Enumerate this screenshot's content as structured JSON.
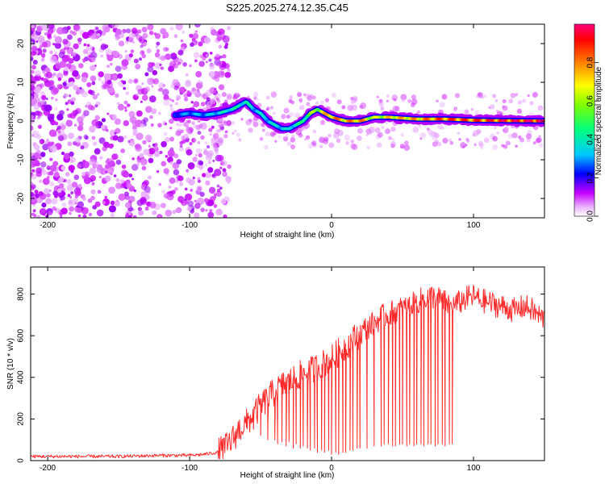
{
  "title": "S225.2025.274.12.35.C45",
  "chart_data": [
    {
      "type": "heatmap",
      "xlabel": "Height of straight line (km)",
      "ylabel": "Frequency (Hz)",
      "xlim": [
        -212,
        150
      ],
      "ylim": [
        -25,
        25
      ],
      "xticks": [
        -200,
        -100,
        0,
        100
      ],
      "yticks": [
        -20,
        -10,
        0,
        10,
        20
      ],
      "colorbar": {
        "label": "Normalized spectral amplitude",
        "range": [
          0,
          1
        ],
        "ticks": [
          0.0,
          0.2,
          0.4,
          0.6,
          0.8
        ],
        "colors": [
          "#ffffff",
          "#c800ff",
          "#0000ff",
          "#00c8ff",
          "#00ff80",
          "#80ff00",
          "#ffff00",
          "#ff8000",
          "#ff0000",
          "#ff0080"
        ]
      },
      "ridge": {
        "x": [
          -110,
          -100,
          -90,
          -80,
          -70,
          -60,
          -55,
          -50,
          -45,
          -40,
          -35,
          -30,
          -25,
          -20,
          -15,
          -10,
          -5,
          0,
          10,
          20,
          30,
          40,
          60,
          80,
          100,
          120,
          150
        ],
        "y": [
          1.5,
          2,
          1.5,
          2,
          3,
          5,
          3,
          2,
          0,
          -1,
          -2,
          -2,
          -1,
          0,
          2,
          3,
          2,
          1,
          0,
          0,
          1,
          1,
          0.5,
          0.5,
          0.2,
          0.1,
          0
        ],
        "amplitude": [
          0.25,
          0.3,
          0.3,
          0.35,
          0.4,
          0.4,
          0.35,
          0.35,
          0.35,
          0.35,
          0.35,
          0.35,
          0.4,
          0.45,
          0.55,
          0.6,
          0.7,
          0.8,
          0.75,
          0.8,
          0.6,
          0.7,
          0.75,
          0.85,
          0.85,
          0.9,
          0.95
        ]
      }
    },
    {
      "type": "line",
      "xlabel": "Height of straight line (km)",
      "ylabel": "SNR (10 * v/v)",
      "xlim": [
        -212,
        150
      ],
      "ylim": [
        0,
        930
      ],
      "xticks": [
        -200,
        -100,
        0,
        100
      ],
      "yticks": [
        0,
        200,
        400,
        600,
        800
      ],
      "series": [
        {
          "color": "#ff2a2a",
          "x": [
            -212,
            -180,
            -150,
            -120,
            -100,
            -90,
            -80,
            -75,
            -70,
            -65,
            -60,
            -55,
            -50,
            -45,
            -40,
            -35,
            -30,
            -25,
            -20,
            -15,
            -10,
            -5,
            0,
            5,
            10,
            15,
            20,
            25,
            30,
            35,
            40,
            45,
            50,
            55,
            60,
            65,
            70,
            75,
            80,
            85,
            90,
            95,
            100,
            105,
            110,
            115,
            120,
            125,
            130,
            135,
            140,
            145,
            150
          ],
          "y": [
            20,
            20,
            20,
            25,
            25,
            30,
            40,
            60,
            100,
            150,
            180,
            220,
            260,
            300,
            330,
            360,
            380,
            400,
            420,
            430,
            450,
            470,
            490,
            520,
            550,
            580,
            610,
            640,
            660,
            690,
            700,
            720,
            730,
            740,
            760,
            780,
            790,
            780,
            760,
            740,
            760,
            780,
            790,
            770,
            760,
            750,
            740,
            730,
            720,
            740,
            730,
            700,
            680
          ]
        }
      ],
      "dips": {
        "x": [
          -65,
          -60,
          -55,
          -50,
          -45,
          -40,
          -38,
          -35,
          -32,
          -30,
          -27,
          -25,
          -22,
          -20,
          -17,
          -15,
          -12,
          -10,
          -7,
          -5,
          -2,
          0,
          3,
          5,
          8,
          10,
          13,
          15,
          18,
          20,
          25,
          30,
          35,
          37,
          40,
          43,
          45,
          48,
          50,
          53,
          55,
          58,
          60,
          63,
          65,
          68,
          70,
          73,
          75,
          78,
          80,
          83,
          85
        ],
        "y": [
          180,
          160,
          150,
          120,
          100,
          100,
          80,
          90,
          70,
          90,
          60,
          80,
          60,
          70,
          60,
          50,
          60,
          40,
          50,
          40,
          50,
          30,
          40,
          30,
          40,
          40,
          50,
          50,
          60,
          60,
          60,
          70,
          70,
          80,
          80,
          70,
          70,
          80,
          80,
          70,
          80,
          70,
          80,
          80,
          70,
          80,
          80,
          70,
          80,
          80,
          70,
          80,
          80
        ]
      }
    }
  ]
}
